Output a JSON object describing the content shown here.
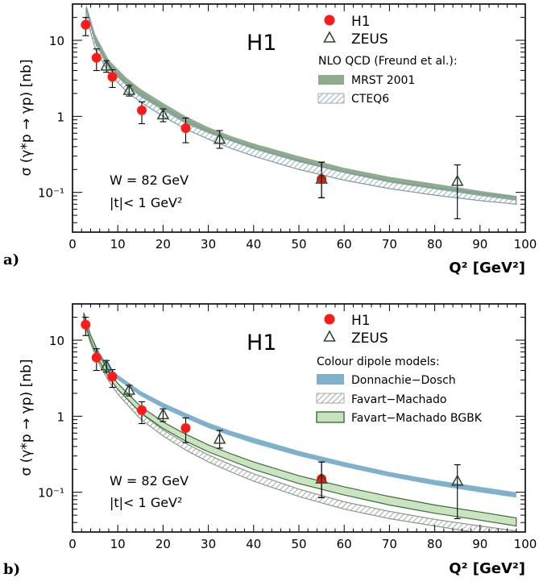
{
  "colors": {
    "h1_marker": "#ff1a1a",
    "zeus_marker": "#2e4a2e",
    "mrst_band": "#8fac8c",
    "cteq_band": "#7f9aa8",
    "donnachie_dosch_band": "#7fb1cc",
    "favart_machado_band": "#8a988a",
    "bgbk_band": "#c6e2bd",
    "bgbk_edge": "#3d6b3d"
  },
  "chart_data": [
    {
      "type": "scatter",
      "panel_label": "a)",
      "watermark": "H1",
      "xlabel": "Q² [GeV²]",
      "ylabel": "σ (γ*p → γp)  [nb]",
      "xlim": [
        0,
        100
      ],
      "ylim": [
        0.03,
        30
      ],
      "yscale": "log",
      "x_ticks": [
        "0",
        "10",
        "20",
        "30",
        "40",
        "50",
        "60",
        "70",
        "80",
        "90",
        "100"
      ],
      "y_ticks": [
        {
          "value": 10,
          "label": "10"
        },
        {
          "value": 1,
          "label": "1"
        },
        {
          "value": 0.1,
          "label": "10⁻¹"
        }
      ],
      "annotations": [
        "W = 82 GeV",
        "|t|< 1 GeV²"
      ],
      "legend": {
        "entries": [
          {
            "label": "H1",
            "marker": "circle"
          },
          {
            "label": "ZEUS",
            "marker": "triangle"
          }
        ],
        "band_title": "NLO QCD (Freund et al.):",
        "bands": [
          {
            "label": "MRST 2001",
            "style": "solid"
          },
          {
            "label": "CTEQ6",
            "style": "hatched"
          }
        ]
      },
      "series": [
        {
          "name": "H1",
          "x": [
            2.9,
            5.3,
            8.8,
            15.3,
            25.0,
            55.0
          ],
          "y": [
            16.0,
            5.9,
            3.3,
            1.2,
            0.7,
            0.15
          ],
          "err_up": [
            4.0,
            1.8,
            0.8,
            0.35,
            0.25,
            0.1
          ],
          "err_down": [
            4.5,
            1.9,
            0.9,
            0.4,
            0.25,
            0.065
          ]
        },
        {
          "name": "ZEUS",
          "x": [
            7.5,
            12.5,
            20.0,
            32.5,
            55.0,
            85.0
          ],
          "y": [
            4.6,
            2.2,
            1.05,
            0.5,
            0.15,
            0.14
          ],
          "err_up": [
            0.8,
            0.35,
            0.2,
            0.15,
            0.1,
            0.09
          ],
          "err_down": [
            0.8,
            0.35,
            0.2,
            0.12,
            0.065,
            0.095
          ]
        }
      ],
      "bands": [
        {
          "name": "MRST 2001",
          "x": [
            3,
            5,
            8,
            12,
            15,
            20,
            25,
            30,
            35,
            40,
            50,
            60,
            70,
            80,
            90,
            98
          ],
          "upper": [
            30,
            12,
            5.5,
            3.2,
            2.3,
            1.5,
            1.0,
            0.72,
            0.55,
            0.44,
            0.3,
            0.21,
            0.16,
            0.13,
            0.105,
            0.09
          ],
          "lower": [
            24,
            9,
            4.2,
            2.5,
            1.8,
            1.2,
            0.8,
            0.6,
            0.47,
            0.37,
            0.25,
            0.18,
            0.135,
            0.11,
            0.09,
            0.078
          ]
        },
        {
          "name": "CTEQ6",
          "x": [
            3,
            5,
            8,
            12,
            15,
            20,
            25,
            30,
            35,
            40,
            50,
            60,
            70,
            80,
            90,
            98
          ],
          "upper": [
            27,
            10,
            4.8,
            2.7,
            2.0,
            1.3,
            0.88,
            0.64,
            0.49,
            0.39,
            0.26,
            0.185,
            0.14,
            0.115,
            0.097,
            0.088
          ],
          "lower": [
            21,
            7.8,
            3.7,
            2.1,
            1.55,
            1.0,
            0.68,
            0.5,
            0.38,
            0.3,
            0.2,
            0.145,
            0.112,
            0.092,
            0.078,
            0.07
          ]
        }
      ]
    },
    {
      "type": "scatter",
      "panel_label": "b)",
      "watermark": "H1",
      "xlabel": "Q² [GeV²]",
      "ylabel": "σ (γ*p → γp)  [nb]",
      "xlim": [
        0,
        100
      ],
      "ylim": [
        0.03,
        30
      ],
      "yscale": "log",
      "x_ticks": [
        "0",
        "10",
        "20",
        "30",
        "40",
        "50",
        "60",
        "70",
        "80",
        "90",
        "100"
      ],
      "y_ticks": [
        {
          "value": 10,
          "label": "10"
        },
        {
          "value": 1,
          "label": "1"
        },
        {
          "value": 0.1,
          "label": "10⁻¹"
        }
      ],
      "annotations": [
        "W = 82 GeV",
        "|t|< 1 GeV²"
      ],
      "legend": {
        "entries": [
          {
            "label": "H1",
            "marker": "circle"
          },
          {
            "label": "ZEUS",
            "marker": "triangle"
          }
        ],
        "band_title": "Colour dipole models:",
        "bands": [
          {
            "label": "Donnachie−Dosch",
            "style": "solid"
          },
          {
            "label": "Favart−Machado",
            "style": "hatched"
          },
          {
            "label": "Favart−Machado BGBK",
            "style": "outlined"
          }
        ]
      },
      "series": [
        {
          "name": "H1",
          "x": [
            2.9,
            5.3,
            8.8,
            15.3,
            25.0,
            55.0
          ],
          "y": [
            16.0,
            5.9,
            3.3,
            1.2,
            0.7,
            0.15
          ],
          "err_up": [
            4.0,
            1.8,
            0.8,
            0.35,
            0.25,
            0.1
          ],
          "err_down": [
            4.5,
            1.9,
            0.9,
            0.4,
            0.25,
            0.065
          ]
        },
        {
          "name": "ZEUS",
          "x": [
            7.5,
            12.5,
            20.0,
            32.5,
            55.0,
            85.0
          ],
          "y": [
            4.6,
            2.2,
            1.05,
            0.5,
            0.15,
            0.14
          ],
          "err_up": [
            0.8,
            0.35,
            0.2,
            0.15,
            0.1,
            0.09
          ],
          "err_down": [
            0.8,
            0.35,
            0.2,
            0.12,
            0.065,
            0.095
          ]
        }
      ],
      "bands": [
        {
          "name": "Donnachie−Dosch",
          "x": [
            2.5,
            4,
            6,
            8,
            10,
            15,
            20,
            25,
            30,
            35,
            40,
            50,
            60,
            70,
            80,
            90,
            98
          ],
          "upper": [
            22,
            12,
            6.8,
            4.6,
            3.5,
            2.15,
            1.5,
            1.1,
            0.82,
            0.64,
            0.52,
            0.35,
            0.25,
            0.185,
            0.145,
            0.118,
            0.1
          ],
          "lower": [
            19,
            10.3,
            5.8,
            3.9,
            3.0,
            1.85,
            1.28,
            0.94,
            0.7,
            0.55,
            0.44,
            0.3,
            0.215,
            0.16,
            0.124,
            0.1,
            0.085
          ]
        },
        {
          "name": "Favart−Machado",
          "x": [
            2.5,
            4,
            6,
            8,
            10,
            15,
            20,
            25,
            30,
            35,
            40,
            50,
            60,
            70,
            80,
            90,
            98
          ],
          "upper": [
            21,
            10.5,
            5.5,
            3.4,
            2.3,
            1.1,
            0.66,
            0.44,
            0.31,
            0.23,
            0.175,
            0.11,
            0.075,
            0.056,
            0.044,
            0.036,
            0.031
          ],
          "lower": [
            18,
            9.0,
            4.7,
            2.9,
            1.95,
            0.92,
            0.55,
            0.36,
            0.25,
            0.185,
            0.14,
            0.088,
            0.06,
            0.045,
            0.036,
            0.029,
            0.025
          ]
        },
        {
          "name": "Favart−Machado BGBK",
          "x": [
            2.5,
            4,
            6,
            8,
            10,
            15,
            20,
            25,
            30,
            35,
            40,
            50,
            60,
            70,
            80,
            90,
            98
          ],
          "upper": [
            23,
            11.6,
            6.2,
            3.9,
            2.7,
            1.35,
            0.84,
            0.58,
            0.42,
            0.32,
            0.25,
            0.165,
            0.118,
            0.088,
            0.068,
            0.055,
            0.046
          ],
          "lower": [
            19.5,
            9.8,
            5.2,
            3.25,
            2.25,
            1.12,
            0.69,
            0.47,
            0.34,
            0.26,
            0.2,
            0.13,
            0.092,
            0.068,
            0.053,
            0.043,
            0.036
          ]
        }
      ]
    }
  ]
}
